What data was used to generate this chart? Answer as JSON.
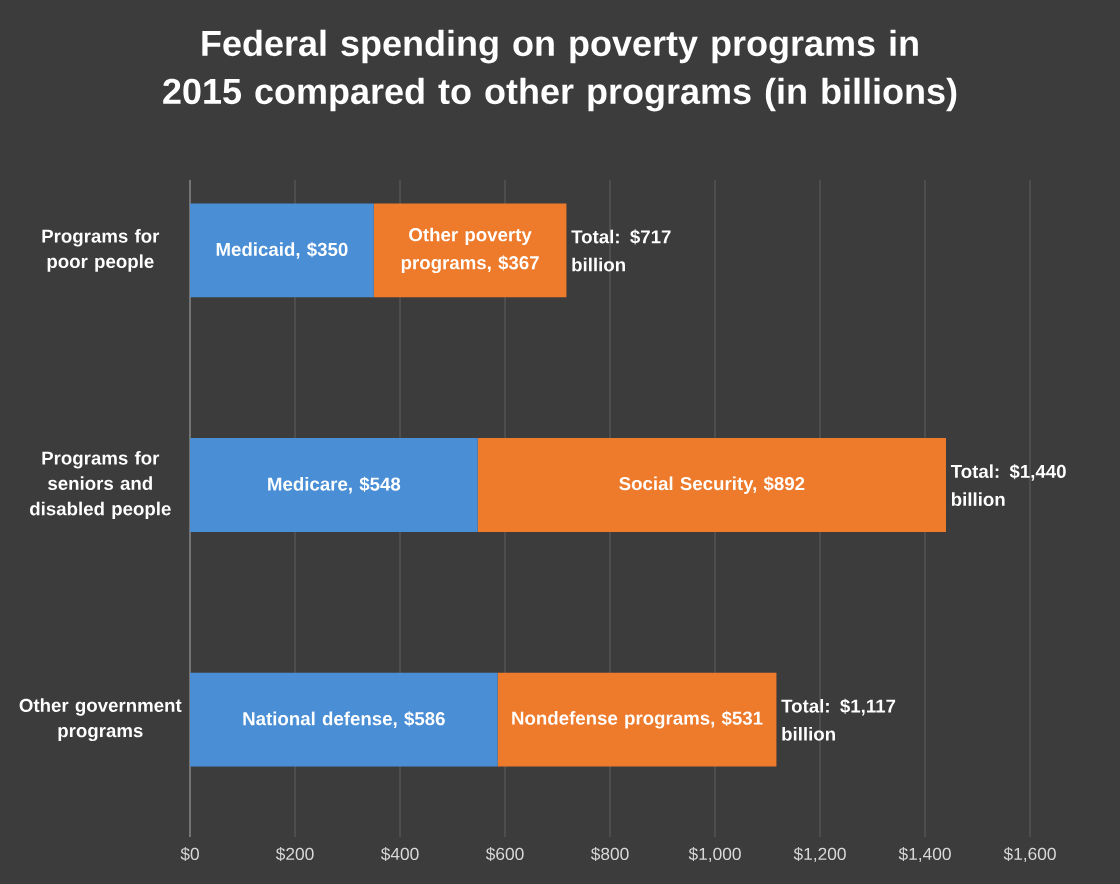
{
  "chart_data": {
    "type": "bar",
    "orientation": "horizontal",
    "stacked": true,
    "grid": "x",
    "title": "Federal spending on poverty programs in 2015 compared to other programs (in billions)",
    "categories": [
      "Programs for poor people",
      "Programs for seniors and disabled people",
      "Other government programs"
    ],
    "series": [
      {
        "color": "#4a8fd6",
        "values": [
          350,
          548,
          586
        ],
        "value_labels": [
          "Medicaid, $350",
          "Medicare, $548",
          "National defense, $586"
        ]
      },
      {
        "color": "#ee7a2c",
        "values": [
          367,
          892,
          531
        ],
        "value_labels": [
          "Other poverty programs, $367",
          "Social Security, $892",
          "Nondefense programs, $531"
        ]
      }
    ],
    "totals": [
      "Total: $717 billion",
      "Total: $1,440 billion",
      "Total: $1,117 billion"
    ],
    "xlim": [
      0,
      1600
    ],
    "xticks": [
      {
        "value": 0,
        "label": "$0"
      },
      {
        "value": 200,
        "label": "$200"
      },
      {
        "value": 400,
        "label": "$400"
      },
      {
        "value": 600,
        "label": "$600"
      },
      {
        "value": 800,
        "label": "$800"
      },
      {
        "value": 1000,
        "label": "$1,000"
      },
      {
        "value": 1200,
        "label": "$1,200"
      },
      {
        "value": 1400,
        "label": "$1,400"
      },
      {
        "value": 1600,
        "label": "$1,600"
      }
    ]
  }
}
